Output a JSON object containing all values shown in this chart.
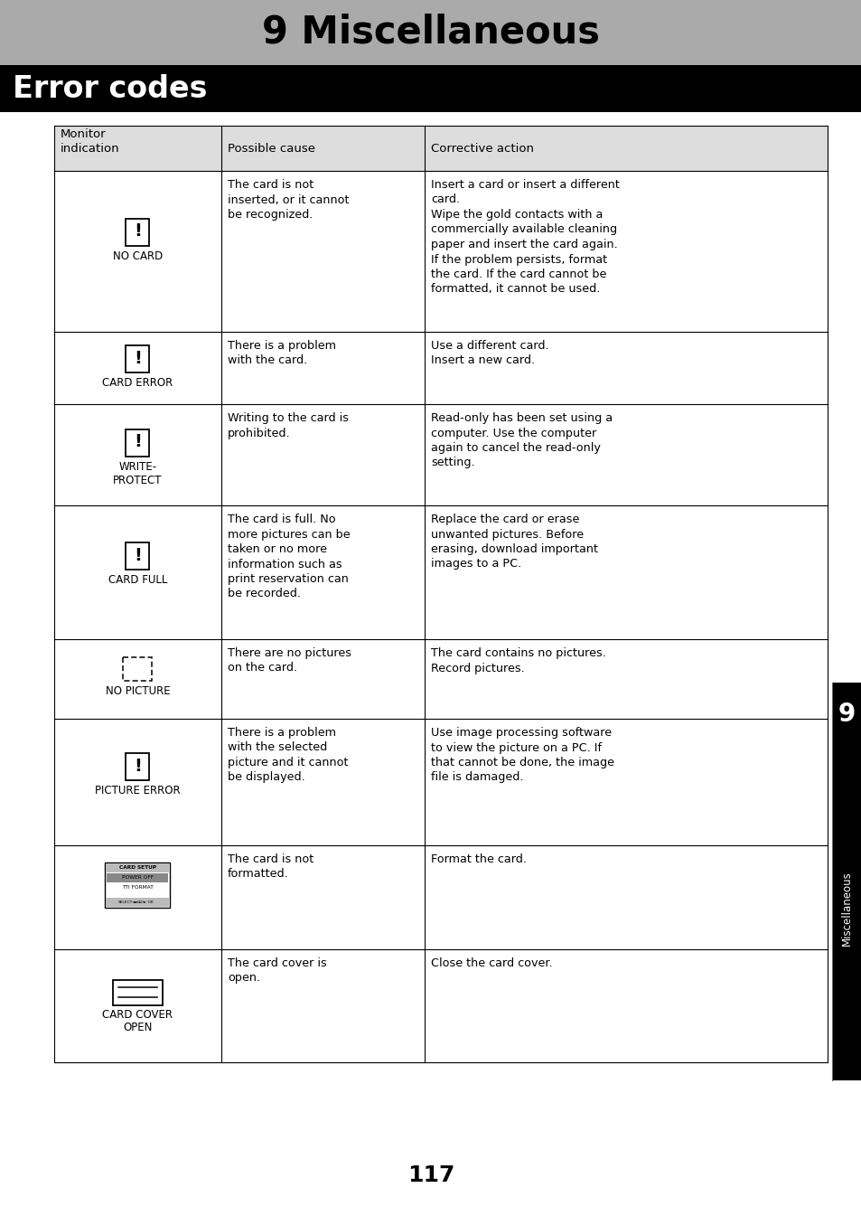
{
  "title": "9 Miscellaneous",
  "section": "Error codes",
  "title_bg": "#aaaaaa",
  "section_bg": "#000000",
  "section_fg": "#ffffff",
  "title_fg": "#000000",
  "page_bg": "#ffffff",
  "sidebar_bg": "#000000",
  "sidebar_fg": "#ffffff",
  "sidebar_num": "9",
  "sidebar_text": "Miscellaneous",
  "page_num": "117",
  "table_border": "#000000",
  "table_header_bg": "#dddddd",
  "headers": [
    "Monitor\nindication",
    "Possible cause",
    "Corrective action"
  ],
  "rows": [
    {
      "icon_type": "exclamation_card",
      "label": "NO CARD",
      "cause": "The card is not\ninserted, or it cannot\nbe recognized.",
      "action": "Insert a card or insert a different\ncard.\nWipe the gold contacts with a\ncommercially available cleaning\npaper and insert the card again.\nIf the problem persists, format\nthe card. If the card cannot be\nformatted, it cannot be used."
    },
    {
      "icon_type": "exclamation_card",
      "label": "CARD ERROR",
      "cause": "There is a problem\nwith the card.",
      "action": "Use a different card.\nInsert a new card."
    },
    {
      "icon_type": "exclamation_card",
      "label": "WRITE-\nPROTECT",
      "cause": "Writing to the card is\nprohibited.",
      "action": "Read-only has been set using a\ncomputer. Use the computer\nagain to cancel the read-only\nsetting."
    },
    {
      "icon_type": "exclamation_card",
      "label": "CARD FULL",
      "cause": "The card is full. No\nmore pictures can be\ntaken or no more\ninformation such as\nprint reservation can\nbe recorded.",
      "action": "Replace the card or erase\nunwanted pictures. Before\nerasing, download important\nimages to a PC."
    },
    {
      "icon_type": "dashed_rect",
      "label": "NO PICTURE",
      "cause": "There are no pictures\non the card.",
      "action": "The card contains no pictures.\nRecord pictures."
    },
    {
      "icon_type": "exclamation_card",
      "label": "PICTURE ERROR",
      "cause": "There is a problem\nwith the selected\npicture and it cannot\nbe displayed.",
      "action": "Use image processing software\nto view the picture on a PC. If\nthat cannot be done, the image\nfile is damaged."
    },
    {
      "icon_type": "card_setup",
      "label": "",
      "cause": "The card is not\nformatted.",
      "action": "Format the card."
    },
    {
      "icon_type": "card_cover",
      "label": "CARD COVER\nOPEN",
      "cause": "The card cover is\nopen.",
      "action": "Close the card cover."
    }
  ]
}
